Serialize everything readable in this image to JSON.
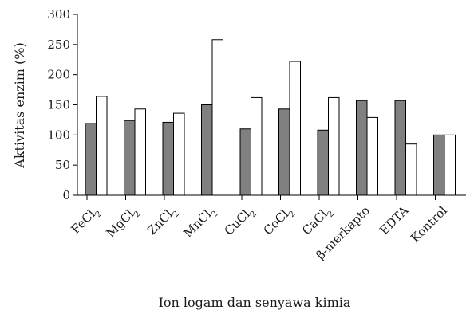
{
  "chart_data": {
    "type": "bar",
    "title": "",
    "xlabel": "Ion logam dan senyawa kimia",
    "ylabel": "Aktivitas enzim (%)",
    "ylim": [
      0,
      300
    ],
    "yticks": [
      0,
      50,
      100,
      150,
      200,
      250,
      300
    ],
    "grid": false,
    "legend": "none",
    "categories": [
      {
        "base": "FeCl",
        "sub": "2"
      },
      {
        "base": "MgCl",
        "sub": "2"
      },
      {
        "base": "ZnCl",
        "sub": "2"
      },
      {
        "base": "MnCl",
        "sub": "2"
      },
      {
        "base": "CuCl",
        "sub": "2"
      },
      {
        "base": "CoCl",
        "sub": "2"
      },
      {
        "base": "CaCl",
        "sub": "2"
      },
      {
        "base": "β-merkapto",
        "sub": ""
      },
      {
        "base": "EDTA",
        "sub": ""
      },
      {
        "base": "Kontrol",
        "sub": ""
      }
    ],
    "series": [
      {
        "values": [
          119,
          124,
          121,
          150,
          110,
          143,
          108,
          157,
          157,
          100
        ],
        "color": "#808080"
      },
      {
        "values": [
          164,
          143,
          136,
          258,
          162,
          222,
          162,
          129,
          85,
          100
        ],
        "color": "#ffffff"
      }
    ]
  }
}
